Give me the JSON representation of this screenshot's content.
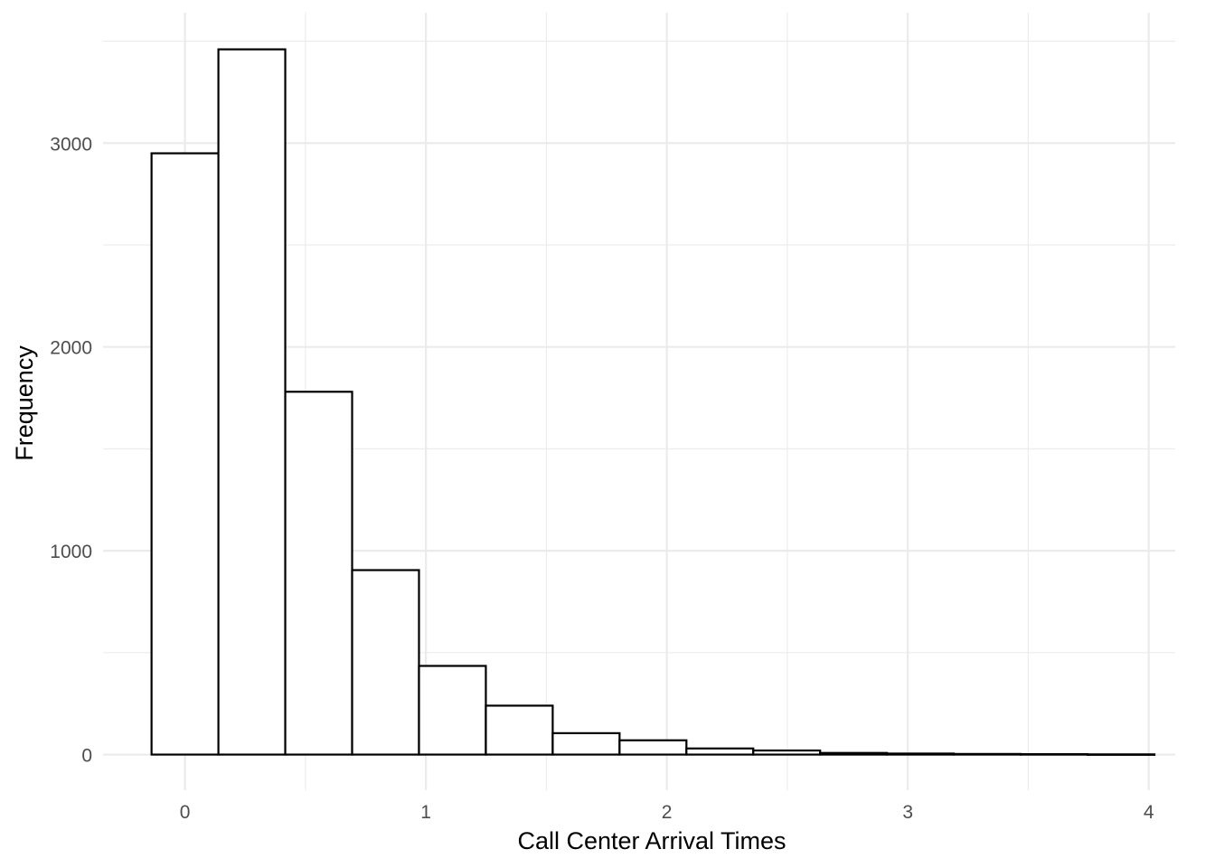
{
  "chart_data": {
    "type": "bar",
    "title": "",
    "xlabel": "Call Center Arrival Times",
    "ylabel": "Frequency",
    "bin_width": 0.2775,
    "bin_centers": [
      0,
      0.2775,
      0.555,
      0.8325,
      1.11,
      1.3875,
      1.665,
      1.9425,
      2.22,
      2.4975,
      2.775,
      3.0525,
      3.33,
      3.6075,
      3.885
    ],
    "values": [
      2950,
      3460,
      1780,
      905,
      435,
      240,
      105,
      70,
      30,
      20,
      8,
      5,
      3,
      2,
      1
    ],
    "xlim": [
      -0.34,
      4.11
    ],
    "ylim": [
      -175,
      3640
    ],
    "x_ticks": [
      0,
      1,
      2,
      3,
      4
    ],
    "x_tick_labels": [
      "0",
      "1",
      "2",
      "3",
      "4"
    ],
    "y_ticks": [
      0,
      1000,
      2000,
      3000
    ],
    "y_tick_labels": [
      "0",
      "1000",
      "2000",
      "3000"
    ],
    "x_minor_ticks": [
      0.5,
      1.5,
      2.5,
      3.5
    ],
    "y_minor_ticks": [
      500,
      1500,
      2500,
      3500
    ],
    "grid": true,
    "legend": "none"
  }
}
